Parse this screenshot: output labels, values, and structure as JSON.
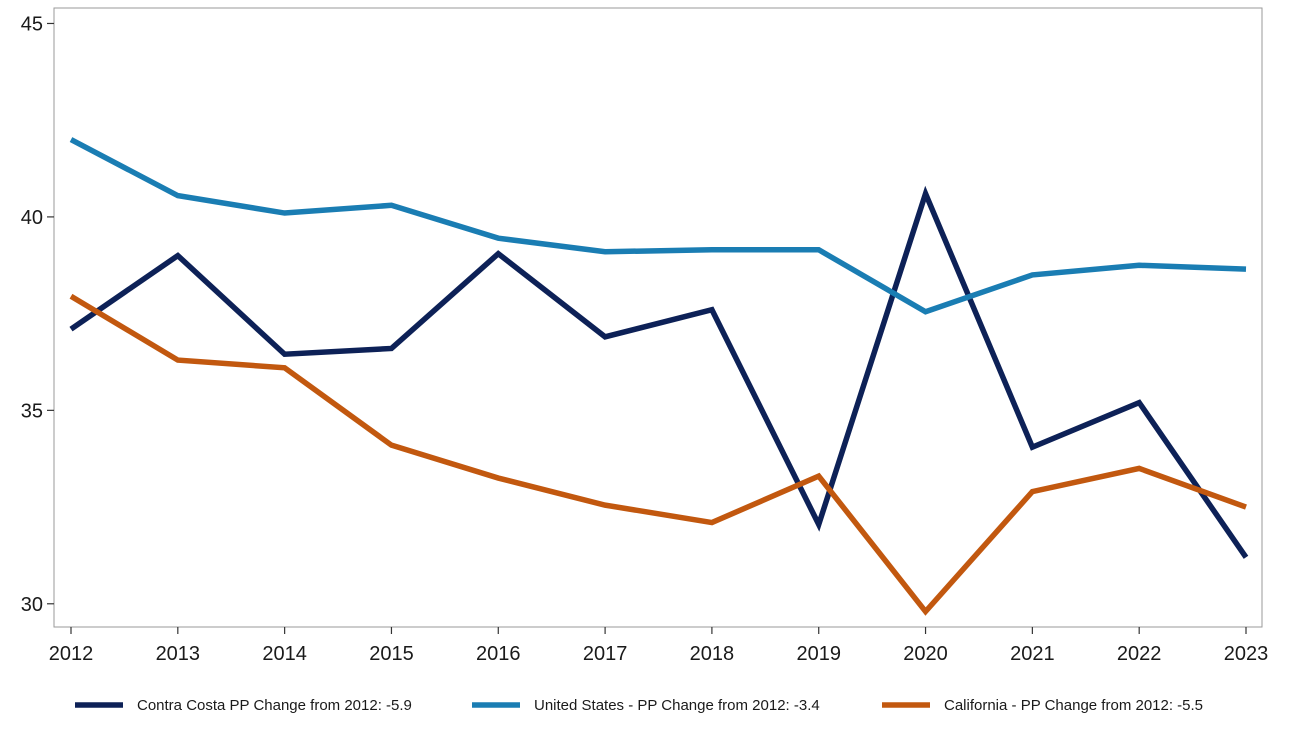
{
  "chart_data": {
    "type": "line",
    "title": "",
    "xlabel": "",
    "ylabel": "",
    "x": [
      2012,
      2013,
      2014,
      2015,
      2016,
      2017,
      2018,
      2019,
      2020,
      2021,
      2022,
      2023
    ],
    "ylim": [
      29.4,
      45.4
    ],
    "yticks": [
      30,
      35,
      40,
      45
    ],
    "grid": false,
    "legend_position": "bottom",
    "series": [
      {
        "name": "Contra Costa PP Change from 2012: -5.9",
        "color": "#0d2157",
        "values": [
          37.1,
          39.0,
          36.45,
          36.6,
          39.05,
          36.9,
          37.6,
          32.05,
          40.6,
          34.05,
          35.2,
          31.2
        ]
      },
      {
        "name": "United States - PP Change from 2012: -3.4",
        "color": "#1a7db3",
        "values": [
          42.0,
          40.55,
          40.1,
          40.3,
          39.45,
          39.1,
          39.15,
          39.15,
          37.55,
          38.5,
          38.75,
          38.65
        ]
      },
      {
        "name": "California - PP Change from 2012: -5.5",
        "color": "#c2580f",
        "values": [
          37.95,
          36.3,
          36.1,
          34.1,
          33.25,
          32.55,
          32.1,
          33.3,
          29.8,
          32.9,
          33.5,
          32.5
        ]
      }
    ]
  }
}
